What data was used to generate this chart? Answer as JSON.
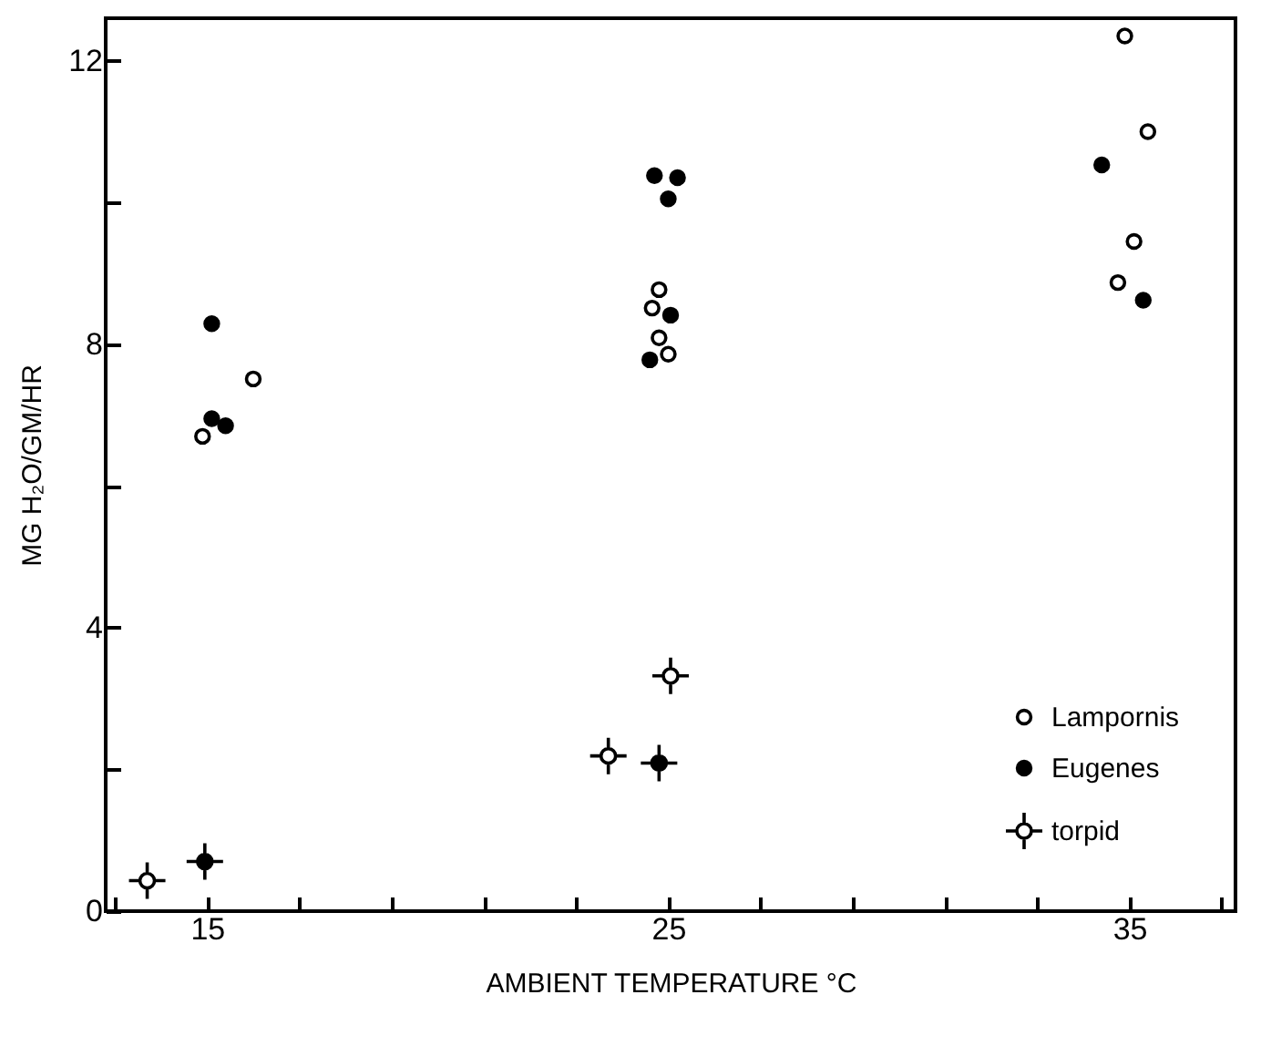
{
  "chart_data": {
    "type": "scatter",
    "xlabel": "AMBIENT TEMPERATURE °C",
    "ylabel": "MG H₂O/GM/HR",
    "xlim": [
      12.8,
      37.3
    ],
    "ylim": [
      0,
      12.6
    ],
    "xticks": [
      {
        "value": 13,
        "label": null
      },
      15,
      {
        "value": 17,
        "label": null
      },
      {
        "value": 19,
        "label": null
      },
      {
        "value": 21,
        "label": null
      },
      {
        "value": 23,
        "label": null
      },
      25,
      {
        "value": 27,
        "label": null
      },
      {
        "value": 29,
        "label": null
      },
      {
        "value": 31,
        "label": null
      },
      {
        "value": 33,
        "label": null
      },
      35,
      {
        "value": 37,
        "label": null
      }
    ],
    "yticks": [
      0,
      {
        "value": 2,
        "label": null
      },
      4,
      {
        "value": 6,
        "label": null
      },
      8,
      {
        "value": 10,
        "label": null
      },
      12
    ],
    "grid": false,
    "legend": "bottom right",
    "series": [
      {
        "name": "Lampornis",
        "color": "#ffffff",
        "marker": "circle",
        "x": [
          16.0,
          14.9,
          24.8,
          24.65,
          24.8,
          25.0,
          34.9,
          35.4,
          35.1,
          34.75
        ],
        "values": [
          7.51,
          6.7,
          8.77,
          8.51,
          8.09,
          7.86,
          12.35,
          11.0,
          9.45,
          8.87
        ]
      },
      {
        "name": "Eugenes",
        "color": "#000000",
        "marker": "circle",
        "x": [
          15.1,
          15.1,
          15.4,
          24.7,
          25.2,
          25.0,
          25.05,
          24.6,
          34.4,
          35.3
        ],
        "values": [
          8.29,
          6.95,
          6.85,
          10.38,
          10.35,
          10.05,
          8.41,
          7.78,
          10.53,
          8.62
        ]
      },
      {
        "name": "torpid",
        "color": "#ffffff",
        "marker": "cross",
        "x": [
          13.7,
          25.05,
          23.7
        ],
        "values": [
          0.43,
          3.32,
          2.19
        ]
      },
      {
        "color": "#000000",
        "marker": "cross",
        "x": [
          14.95,
          24.8
        ],
        "values": [
          0.7,
          2.09
        ]
      }
    ]
  }
}
